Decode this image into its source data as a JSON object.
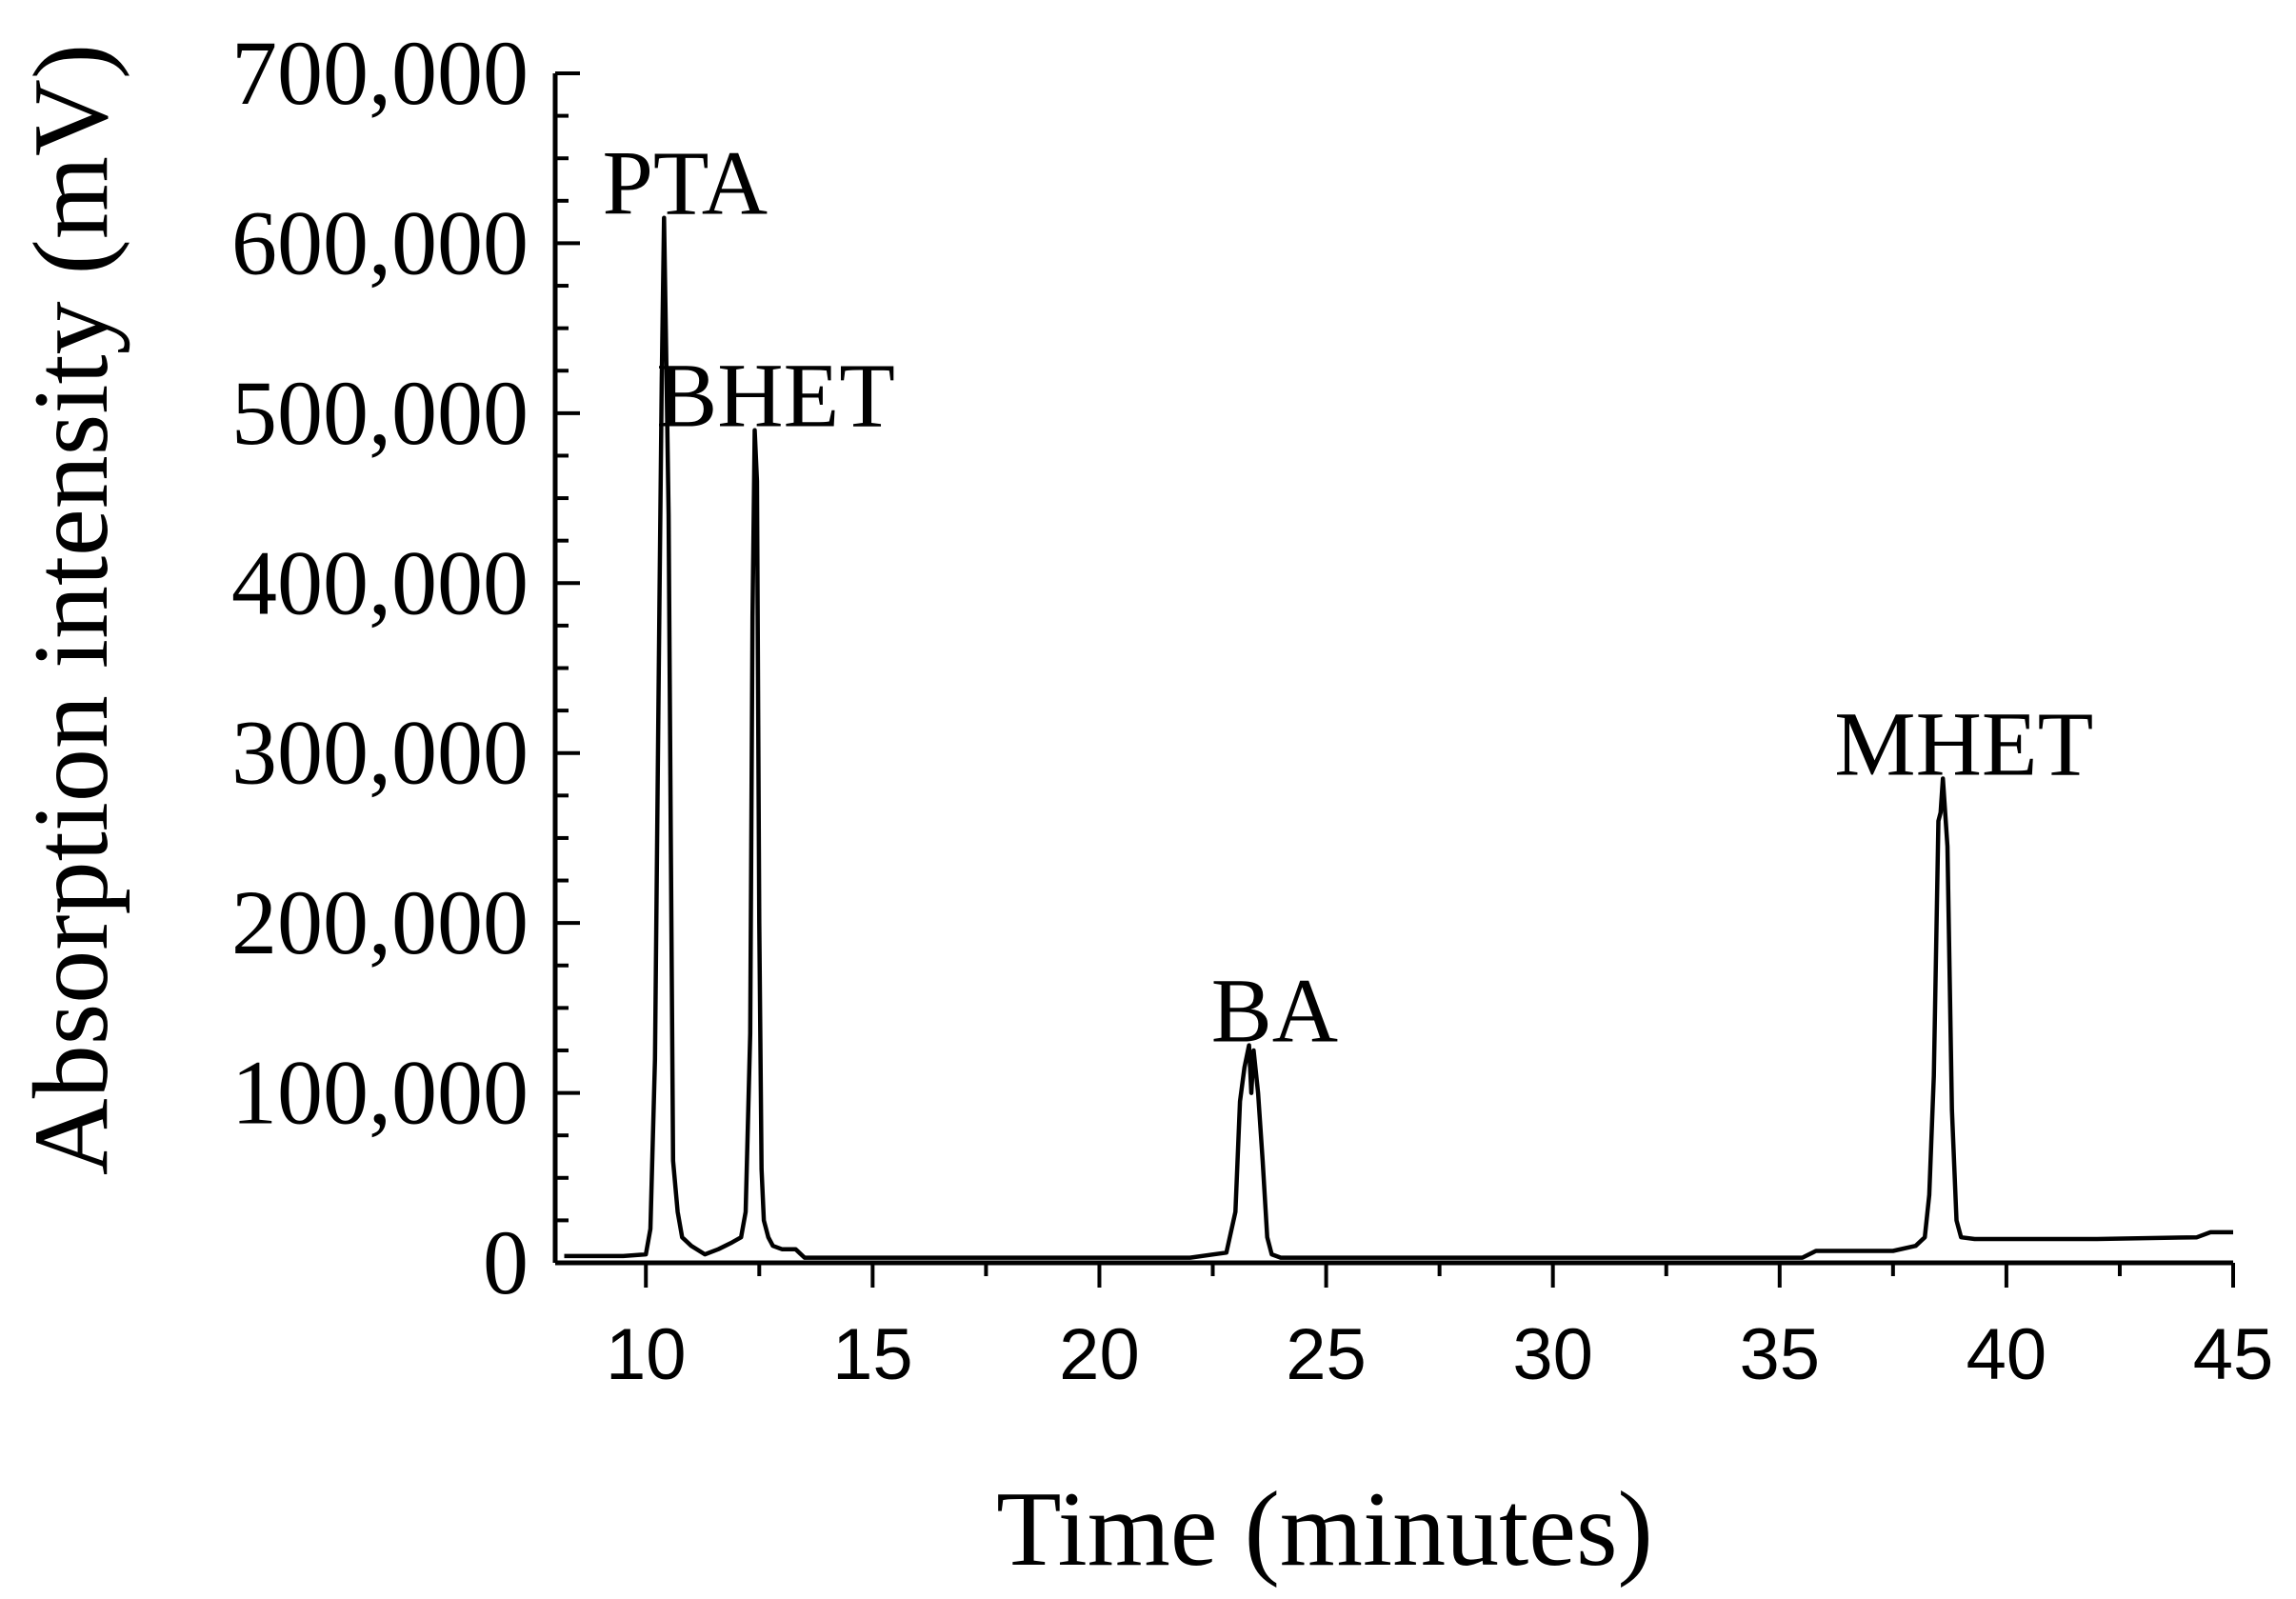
{
  "chart_data": {
    "type": "line",
    "title": "",
    "xlabel": "Time (minutes)",
    "ylabel": "Absorption intensity (mV)",
    "xlim": [
      8,
      45
    ],
    "ylim": [
      0,
      700000
    ],
    "x_ticks": [
      10,
      15,
      20,
      25,
      30,
      35,
      40,
      45
    ],
    "y_ticks": [
      0,
      100000,
      200000,
      300000,
      400000,
      500000,
      600000,
      700000
    ],
    "y_tick_labels": [
      "0",
      "100,000",
      "200,000",
      "300,000",
      "400,000",
      "500,000",
      "600,000",
      "700,000"
    ],
    "grid": false,
    "legend": "none",
    "line_color": "#000000",
    "series": [
      {
        "x": [
          8.2,
          9.5,
          10.0,
          10.1,
          10.2,
          10.3,
          10.35,
          10.4,
          10.45,
          10.5,
          10.55,
          10.6,
          10.7,
          10.8,
          11.0,
          11.3,
          11.6,
          11.9,
          12.1,
          12.2,
          12.3,
          12.35,
          12.4,
          12.45,
          12.5,
          12.55,
          12.6,
          12.7,
          12.8,
          13.0,
          13.3,
          13.5,
          14.0,
          16.0,
          20.0,
          22.0,
          22.8,
          23.0,
          23.1,
          23.2,
          23.3,
          23.35,
          23.4,
          23.5,
          23.6,
          23.7,
          23.8,
          24.0,
          26.0,
          30.0,
          34.0,
          35.5,
          35.8,
          36.5,
          37.5,
          38.0,
          38.2,
          38.3,
          38.4,
          38.5,
          38.55,
          38.6,
          38.7,
          38.8,
          38.9,
          39.0,
          39.3,
          40.0,
          42.0,
          44.2,
          44.5,
          45.0
        ],
        "y": [
          4000,
          4000,
          5000,
          20000,
          120000,
          390000,
          520000,
          615000,
          530000,
          440000,
          250000,
          60000,
          30000,
          15000,
          10000,
          5000,
          8000,
          12000,
          15000,
          30000,
          135000,
          380000,
          490000,
          460000,
          200000,
          55000,
          25000,
          15000,
          10000,
          8000,
          8000,
          3000,
          3000,
          3000,
          3000,
          3000,
          6000,
          30000,
          95000,
          115000,
          128000,
          100000,
          125000,
          100000,
          60000,
          15000,
          5000,
          3000,
          3000,
          3000,
          3000,
          3000,
          7000,
          7000,
          7000,
          10000,
          15000,
          40000,
          110000,
          260000,
          265000,
          285000,
          245000,
          90000,
          25000,
          15000,
          14000,
          14000,
          14000,
          15000,
          18000,
          18000
        ]
      }
    ],
    "annotations": [
      {
        "text": "PTA",
        "x": 10.4,
        "y": 615000
      },
      {
        "text": "BHET",
        "x": 12.4,
        "y": 490000
      },
      {
        "text": "BA",
        "x": 23.4,
        "y": 128000
      },
      {
        "text": "MHET",
        "x": 38.6,
        "y": 285000
      }
    ]
  }
}
